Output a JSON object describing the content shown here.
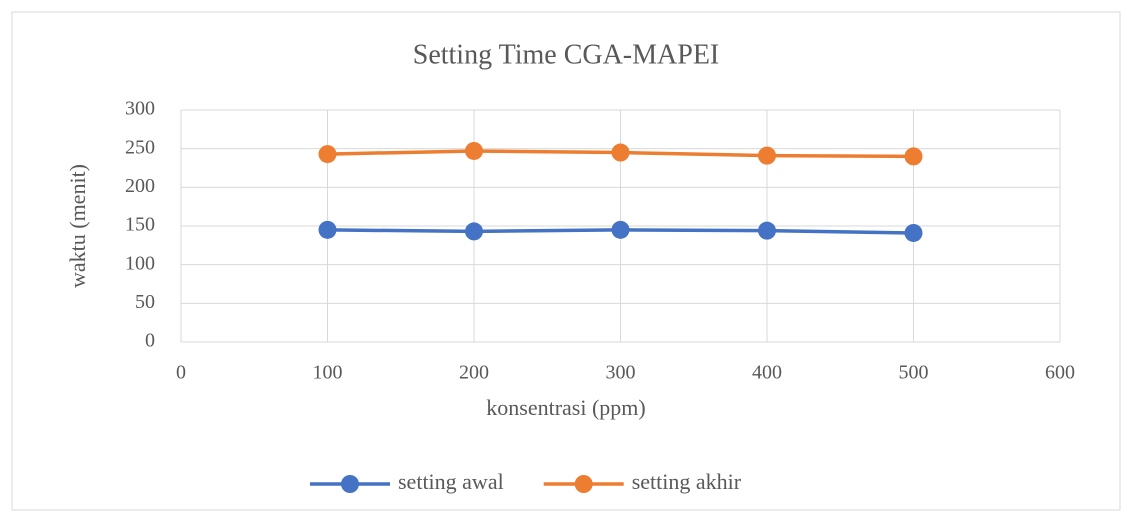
{
  "chart_data": {
    "type": "line",
    "title": "Setting Time CGA-MAPEI",
    "x_label": "konsentrasi (ppm)",
    "y_label": "waktu (menit)",
    "x": [
      100,
      200,
      300,
      400,
      500
    ],
    "series": [
      {
        "name": "setting awal",
        "color": "#4472c4",
        "values": [
          145,
          143,
          145,
          144,
          141
        ]
      },
      {
        "name": "setting akhir",
        "color": "#ed7d31",
        "values": [
          243,
          247,
          245,
          241,
          240
        ]
      }
    ],
    "xlim": [
      0,
      600
    ],
    "xticks": [
      0,
      100,
      200,
      300,
      400,
      500,
      600
    ],
    "ylim": [
      0,
      300
    ],
    "yticks": [
      0,
      50,
      100,
      150,
      200,
      250,
      300
    ],
    "grid": true,
    "legend": "bottom"
  }
}
